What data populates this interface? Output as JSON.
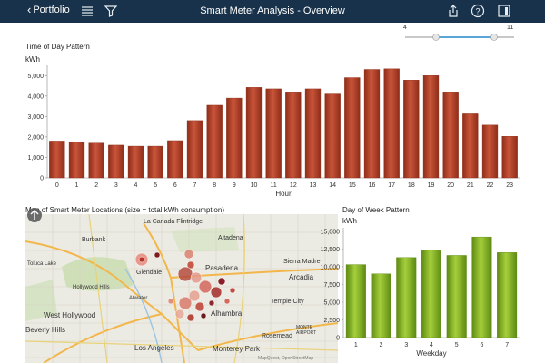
{
  "header": {
    "back_label": "Portfolio",
    "title": "Smart Meter Analysis - Overview",
    "icons": [
      "list-icon",
      "funnel-icon",
      "share-icon",
      "help-icon",
      "panel-icon"
    ]
  },
  "slider": {
    "min_label": "4",
    "max_label": "11",
    "low_value": 4,
    "high_value": 11,
    "accent": "#5aa6d6"
  },
  "time_chart": {
    "title": "Time of Day Pattern",
    "ylabel": "kWh"
  },
  "map_panel": {
    "title": "Map of Smart Meter Locations (size = total kWh consumption)",
    "places": [
      "La Canada Flintridge",
      "Burbank",
      "Altadena",
      "Toluca Lake",
      "Hollywood Hills",
      "Glendale",
      "Pasadena",
      "Sierra Madre",
      "Arcadia",
      "Atwater",
      "Temple City",
      "West Hollywood",
      "Alhambra",
      "Rosemead",
      "MONTE",
      "AIRPORT",
      "Beverly Hills",
      "Los Angeles",
      "Monterey Park"
    ],
    "attribution": "MapQuest, OpenStreetMap"
  },
  "dow_chart": {
    "title": "Day of Week Pattern",
    "ylabel": "kWh"
  },
  "chart_data": [
    {
      "type": "bar",
      "title": "Time of Day Pattern",
      "xlabel": "Hour",
      "ylabel": "kWh",
      "categories": [
        "0",
        "1",
        "2",
        "3",
        "4",
        "5",
        "6",
        "7",
        "8",
        "9",
        "10",
        "11",
        "12",
        "13",
        "14",
        "15",
        "16",
        "17",
        "18",
        "19",
        "20",
        "21",
        "22",
        "23"
      ],
      "values": [
        1800,
        1750,
        1700,
        1600,
        1550,
        1550,
        1820,
        2800,
        3550,
        3900,
        4420,
        4350,
        4200,
        4350,
        4100,
        4900,
        5300,
        5330,
        4780,
        5000,
        4200,
        3130,
        2580,
        2030
      ],
      "ylim": [
        0,
        5500
      ],
      "yticks": [
        "0",
        "1,000",
        "2,000",
        "3,000",
        "4,000",
        "5,000"
      ],
      "ytick_values": [
        0,
        1000,
        2000,
        3000,
        4000,
        5000
      ],
      "color": "#a83a22"
    },
    {
      "type": "bar",
      "title": "Day of Week Pattern",
      "xlabel": "Weekday",
      "ylabel": "kWh",
      "categories": [
        "1",
        "2",
        "3",
        "4",
        "5",
        "6",
        "7"
      ],
      "values": [
        10300,
        9000,
        11300,
        12400,
        11600,
        14200,
        12000
      ],
      "ylim": [
        0,
        15500
      ],
      "yticks": [
        "0",
        "2,500",
        "5,000",
        "7,500",
        "10,000",
        "12,500",
        "15,000"
      ],
      "ytick_values": [
        0,
        2500,
        5000,
        7500,
        10000,
        12500,
        15000
      ],
      "color": "#7fae22"
    }
  ]
}
